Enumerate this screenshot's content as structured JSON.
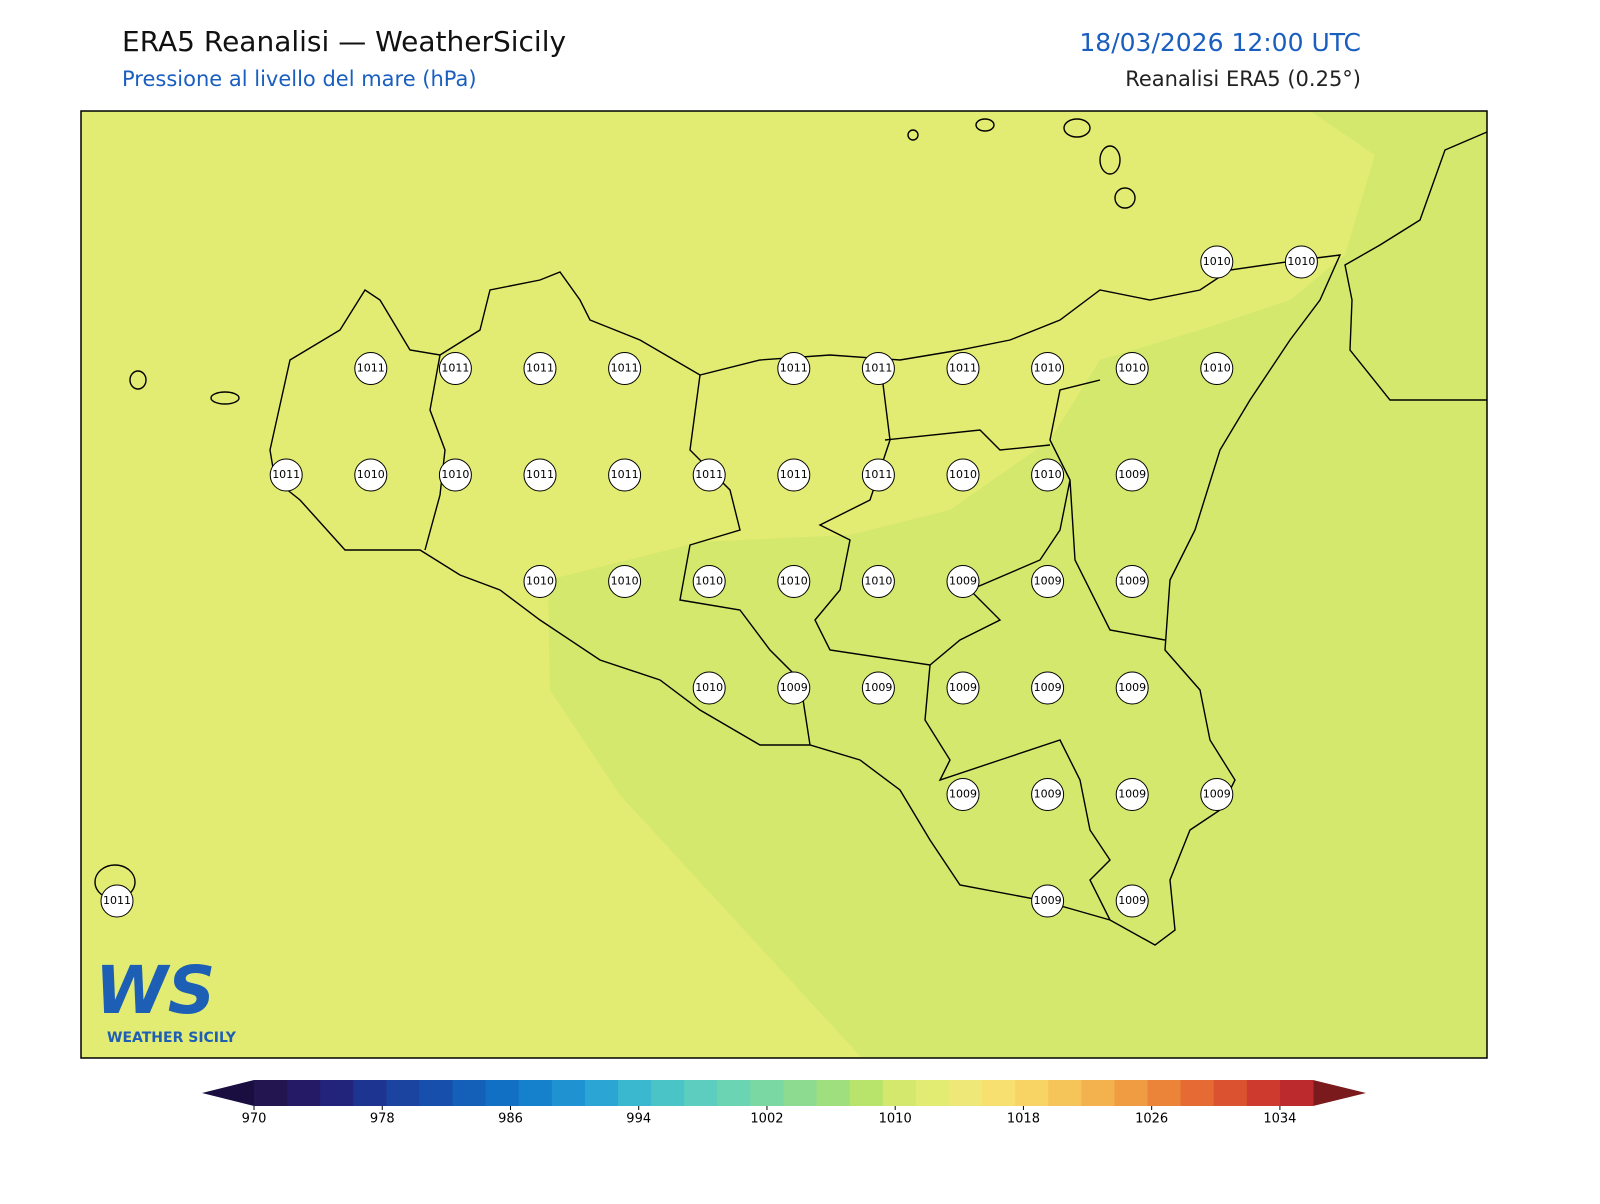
{
  "header": {
    "title": "ERA5 Reanalisi — WeatherSicily",
    "subtitle": "Pressione al livello del mare (hPa)",
    "datetime": "18/03/2026 12:00 UTC",
    "source": "Reanalisi ERA5 (0.25°)"
  },
  "stations": {
    "rows": [
      [
        null,
        null,
        null,
        null,
        null,
        null,
        null,
        null,
        null,
        null,
        null,
        null,
        null,
        1010,
        1010
      ],
      [
        null,
        null,
        null,
        1011,
        1011,
        1011,
        1011,
        null,
        1011,
        1011,
        1011,
        1010,
        1010,
        1010,
        null
      ],
      [
        null,
        null,
        1011,
        1010,
        1010,
        1011,
        1011,
        1011,
        1011,
        1011,
        1010,
        1010,
        1009,
        null,
        null
      ],
      [
        null,
        null,
        null,
        null,
        null,
        1010,
        1010,
        1010,
        1010,
        1010,
        1009,
        1009,
        1009,
        null,
        null
      ],
      [
        null,
        null,
        null,
        null,
        null,
        null,
        null,
        1010,
        1009,
        1009,
        1009,
        1009,
        1009,
        null,
        null
      ],
      [
        null,
        null,
        null,
        null,
        null,
        null,
        null,
        null,
        null,
        null,
        1009,
        1009,
        1009,
        1009,
        null
      ],
      [
        1011,
        null,
        null,
        null,
        null,
        null,
        null,
        null,
        null,
        null,
        null,
        1009,
        1009,
        null,
        null
      ]
    ]
  },
  "colorbar": {
    "clim": [
      970,
      1034
    ],
    "ticks": [
      970,
      978,
      986,
      994,
      1002,
      1010,
      1018,
      1026,
      1034
    ],
    "colors": [
      "#231550",
      "#241a66",
      "#22237a",
      "#1d3590",
      "#1a44a0",
      "#1650ac",
      "#1460b8",
      "#1270c4",
      "#1580cc",
      "#1f93d2",
      "#2aa5d4",
      "#39b8d0",
      "#4bc4c8",
      "#5ccdbf",
      "#6ad4b3",
      "#7ad9a3",
      "#8cdb91",
      "#a0df7d",
      "#b8e46c",
      "#d3e86c",
      "#e2eb72",
      "#ede878",
      "#f8e070",
      "#f8d465",
      "#f5c55a",
      "#f3b24e",
      "#ef9c42",
      "#eb8438",
      "#e56a33",
      "#db5230",
      "#cf3a2e",
      "#bd2a2d"
    ]
  },
  "logo": {
    "mark": "WS",
    "name": "WEATHER SICILY"
  }
}
